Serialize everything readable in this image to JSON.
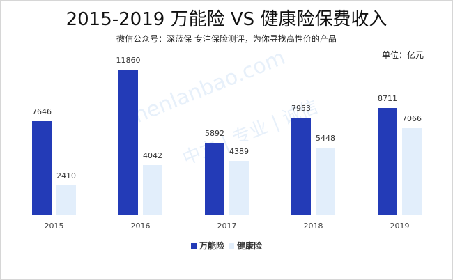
{
  "header": {
    "title": "2015-2019 万能险 VS 健康险保费收入",
    "subtitle": "微信公众号：深蓝保  专注保险测评，为你寻找高性价的产品",
    "unit": "单位：亿元"
  },
  "watermark": {
    "line1": "shenlanbao.com",
    "line2": "中立 | 专业 | 诚信"
  },
  "legend": [
    {
      "label": "万能险",
      "color": "#233bb7"
    },
    {
      "label": "健康险",
      "color": "#e2eefb"
    }
  ],
  "chart_data": {
    "type": "bar",
    "title": "2015-2019 万能险 VS 健康险保费收入",
    "subtitle": "微信公众号：深蓝保  专注保险测评，为你寻找高性价的产品",
    "xlabel": "",
    "ylabel": "单位：亿元",
    "categories": [
      "2015",
      "2016",
      "2017",
      "2018",
      "2019"
    ],
    "series": [
      {
        "name": "万能险",
        "color": "#233bb7",
        "values": [
          7646,
          11860,
          5892,
          7953,
          8711
        ]
      },
      {
        "name": "健康险",
        "color": "#e2eefb",
        "values": [
          2410,
          4042,
          4389,
          5448,
          7066
        ]
      }
    ],
    "ylim": [
      0,
      11860
    ],
    "grid": false,
    "legend_position": "bottom",
    "data_labels": true
  }
}
